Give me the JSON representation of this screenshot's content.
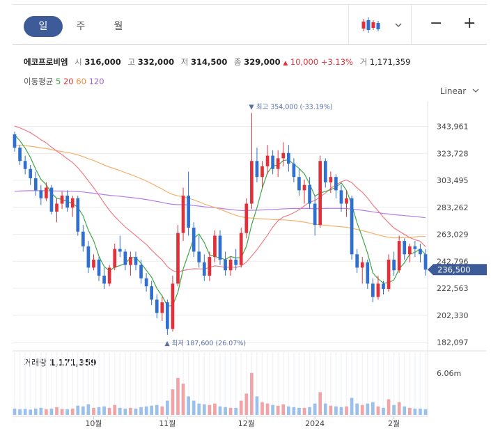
{
  "tabs": [
    {
      "label": "일",
      "active": true
    },
    {
      "label": "주",
      "active": false
    },
    {
      "label": "월",
      "active": false
    }
  ],
  "toolbar": {
    "chart_type_icon": "candlestick-icon",
    "dropdown_icon": "chevron-down-icon",
    "zoom_out": "−",
    "zoom_in": "+"
  },
  "stock": {
    "name": "에코프로비엠",
    "open_label": "시",
    "open": "316,000",
    "high_label": "고",
    "high": "332,000",
    "low_label": "저",
    "low": "314,500",
    "close_label": "종",
    "close": "329,000",
    "change_arrow": "▲",
    "change": "10,000",
    "change_pct": "+3.13%",
    "volume_label": "거",
    "volume": "1,171,359"
  },
  "moving_averages": {
    "label": "이동평균",
    "periods": [
      {
        "period": "5",
        "color": "#3fa845"
      },
      {
        "period": "20",
        "color": "#e0303a"
      },
      {
        "period": "60",
        "color": "#f08a3a"
      },
      {
        "period": "120",
        "color": "#9d5fd8"
      }
    ]
  },
  "scale_type": "Linear",
  "colors": {
    "up": "#e0303a",
    "down": "#2f6fd0",
    "ma5": "#3fa845",
    "ma20": "#ef7b85",
    "ma60": "#f5b06a",
    "ma120": "#b77ee8",
    "price_tag": "#3d5a99",
    "vol_up": "#f0a4a7",
    "vol_down": "#9cc0ec"
  },
  "chart_data": {
    "type": "candlestick",
    "y_ticks": [
      "343,961",
      "323,728",
      "303,495",
      "283,262",
      "263,029",
      "242,796",
      "222,563",
      "202,330",
      "182,097"
    ],
    "y_tick_values": [
      343961,
      323728,
      303495,
      283262,
      263029,
      242796,
      222563,
      202330,
      182097
    ],
    "ylim": [
      182097,
      355000
    ],
    "x_ticks": [
      {
        "label": "10월",
        "index": 15
      },
      {
        "label": "11월",
        "index": 29
      },
      {
        "label": "12월",
        "index": 44
      },
      {
        "label": "2024",
        "index": 57
      },
      {
        "label": "2월",
        "index": 72
      }
    ],
    "current_price_label": "236,500",
    "current_price": 236500,
    "max_annotation": {
      "text": "▼ 최고 354,000 (-33.19%)",
      "value": 354000,
      "index": 45
    },
    "min_annotation": {
      "text": "▲ 최저 187,600 (26.07%)",
      "value": 187600,
      "index": 29
    },
    "volume_label": "거래량",
    "volume_value": "1,171,359",
    "volume_axis_label": "6.06m",
    "volume_max": 6060000,
    "candles": [
      [
        338000,
        340000,
        325000,
        328000
      ],
      [
        328000,
        330000,
        315000,
        318000
      ],
      [
        318000,
        322000,
        308000,
        312000
      ],
      [
        312000,
        315000,
        300000,
        305000
      ],
      [
        305000,
        310000,
        292000,
        296000
      ],
      [
        296000,
        300000,
        285000,
        290000
      ],
      [
        290000,
        302000,
        288000,
        298000
      ],
      [
        298000,
        300000,
        278000,
        280000
      ],
      [
        280000,
        290000,
        272000,
        286000
      ],
      [
        286000,
        295000,
        282000,
        292000
      ],
      [
        292000,
        296000,
        280000,
        283000
      ],
      [
        283000,
        292000,
        276000,
        290000
      ],
      [
        290000,
        292000,
        262000,
        265000
      ],
      [
        265000,
        270000,
        250000,
        254000
      ],
      [
        254000,
        258000,
        234000,
        238000
      ],
      [
        238000,
        248000,
        236000,
        244000
      ],
      [
        244000,
        246000,
        228000,
        232000
      ],
      [
        232000,
        238000,
        222000,
        226000
      ],
      [
        226000,
        240000,
        224000,
        238000
      ],
      [
        238000,
        256000,
        236000,
        252000
      ],
      [
        252000,
        262000,
        246000,
        250000
      ],
      [
        250000,
        252000,
        236000,
        240000
      ],
      [
        240000,
        250000,
        232000,
        246000
      ],
      [
        246000,
        250000,
        236000,
        240000
      ],
      [
        240000,
        244000,
        226000,
        230000
      ],
      [
        230000,
        234000,
        220000,
        224000
      ],
      [
        224000,
        228000,
        210000,
        214000
      ],
      [
        214000,
        218000,
        200000,
        204000
      ],
      [
        204000,
        216000,
        198000,
        212000
      ],
      [
        212000,
        214000,
        187600,
        192000
      ],
      [
        192000,
        232000,
        190000,
        226000
      ],
      [
        226000,
        270000,
        224000,
        264000
      ],
      [
        264000,
        298000,
        258000,
        292000
      ],
      [
        292000,
        310000,
        262000,
        268000
      ],
      [
        268000,
        272000,
        246000,
        250000
      ],
      [
        250000,
        262000,
        238000,
        242000
      ],
      [
        242000,
        248000,
        228000,
        232000
      ],
      [
        232000,
        250000,
        228000,
        246000
      ],
      [
        246000,
        266000,
        242000,
        262000
      ],
      [
        262000,
        266000,
        240000,
        244000
      ],
      [
        244000,
        250000,
        232000,
        236000
      ],
      [
        236000,
        246000,
        232000,
        244000
      ],
      [
        244000,
        252000,
        236000,
        240000
      ],
      [
        240000,
        268000,
        238000,
        264000
      ],
      [
        264000,
        290000,
        260000,
        286000
      ],
      [
        286000,
        354000,
        282000,
        318000
      ],
      [
        318000,
        328000,
        302000,
        306000
      ],
      [
        306000,
        318000,
        298000,
        314000
      ],
      [
        314000,
        330000,
        308000,
        322000
      ],
      [
        322000,
        326000,
        308000,
        312000
      ],
      [
        312000,
        326000,
        306000,
        320000
      ],
      [
        320000,
        332000,
        314000,
        324000
      ],
      [
        324000,
        330000,
        310000,
        316000
      ],
      [
        316000,
        320000,
        302000,
        306000
      ],
      [
        306000,
        312000,
        292000,
        296000
      ],
      [
        296000,
        304000,
        286000,
        300000
      ],
      [
        300000,
        306000,
        282000,
        286000
      ],
      [
        286000,
        292000,
        262000,
        270000
      ],
      [
        270000,
        322000,
        268000,
        318000
      ],
      [
        318000,
        320000,
        298000,
        302000
      ],
      [
        302000,
        310000,
        294000,
        306000
      ],
      [
        306000,
        308000,
        290000,
        296000
      ],
      [
        296000,
        300000,
        280000,
        286000
      ],
      [
        286000,
        296000,
        276000,
        290000
      ],
      [
        290000,
        292000,
        244000,
        248000
      ],
      [
        248000,
        252000,
        234000,
        238000
      ],
      [
        238000,
        246000,
        226000,
        242000
      ],
      [
        242000,
        244000,
        222000,
        226000
      ],
      [
        226000,
        230000,
        212000,
        216000
      ],
      [
        216000,
        232000,
        214000,
        226000
      ],
      [
        226000,
        228000,
        218000,
        222000
      ],
      [
        222000,
        248000,
        220000,
        244000
      ],
      [
        244000,
        250000,
        232000,
        236000
      ],
      [
        236000,
        262000,
        234000,
        258000
      ],
      [
        258000,
        260000,
        244000,
        248000
      ],
      [
        248000,
        256000,
        242000,
        254000
      ],
      [
        254000,
        258000,
        246000,
        252000
      ],
      [
        252000,
        256000,
        242000,
        248000
      ],
      [
        248000,
        252000,
        232000,
        236500
      ]
    ],
    "volumes": [
      0.9,
      0.8,
      0.85,
      0.75,
      0.9,
      1.0,
      0.8,
      0.9,
      1.1,
      0.85,
      0.8,
      0.9,
      1.3,
      1.2,
      1.5,
      1.0,
      1.1,
      1.2,
      1.0,
      1.4,
      1.0,
      0.9,
      1.0,
      0.9,
      1.1,
      1.2,
      1.3,
      1.4,
      1.2,
      2.0,
      3.6,
      5.2,
      4.4,
      2.6,
      2.0,
      1.6,
      1.5,
      1.4,
      1.6,
      1.2,
      1.1,
      1.0,
      1.0,
      2.0,
      3.0,
      5.9,
      2.6,
      1.8,
      1.6,
      1.4,
      1.3,
      1.5,
      1.2,
      1.1,
      1.0,
      1.0,
      1.1,
      1.6,
      3.2,
      1.6,
      1.3,
      1.2,
      1.1,
      1.2,
      2.4,
      1.6,
      1.4,
      1.6,
      1.8,
      1.2,
      1.0,
      2.2,
      1.4,
      1.8,
      1.2,
      1.0,
      0.9,
      0.9,
      0.8
    ]
  }
}
